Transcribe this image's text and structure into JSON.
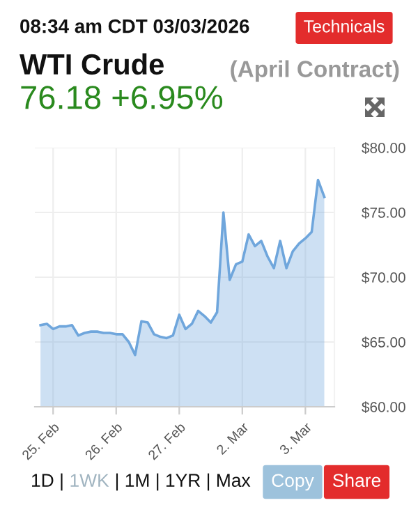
{
  "chart_data": {
    "type": "area",
    "title": "WTI Crude",
    "subtitle": "76.18 +6.95%",
    "annotations": [
      "08:34 am CDT 03/03/2026",
      "(April Contract)",
      "Technicals",
      "1D | ",
      "1WK",
      " | 1M | 1YR | Max",
      "Copy",
      "Share"
    ],
    "categories": [
      null,
      null,
      "25. Feb",
      null,
      null,
      null,
      null,
      null,
      null,
      null,
      null,
      null,
      "26. Feb",
      null,
      null,
      null,
      null,
      null,
      null,
      null,
      null,
      null,
      "27. Feb",
      null,
      null,
      null,
      null,
      null,
      null,
      null,
      null,
      null,
      "2. Mar",
      null,
      null,
      null,
      null,
      null,
      null,
      null,
      null,
      null,
      "3. Mar",
      null,
      null,
      null
    ],
    "series": [
      {
        "color": "#6fa6dc",
        "values": [
          66.3,
          66.4,
          66.0,
          66.2,
          66.2,
          66.3,
          65.5,
          65.7,
          65.8,
          65.8,
          65.7,
          65.7,
          65.6,
          65.6,
          65.0,
          64.0,
          66.6,
          66.5,
          65.6,
          65.4,
          65.3,
          65.5,
          67.1,
          66.0,
          66.4,
          67.4,
          67.0,
          66.5,
          67.3,
          75.0,
          69.8,
          71.0,
          71.2,
          73.3,
          72.4,
          72.8,
          71.6,
          70.7,
          72.8,
          70.7,
          72.0,
          72.6,
          73.0,
          73.5,
          77.5,
          76.2
        ]
      }
    ],
    "ylim": [
      60,
      80
    ],
    "yticks": [
      {
        "value": 60,
        "label": "$60.00"
      },
      {
        "value": 65,
        "label": "$65.00"
      },
      {
        "value": 70,
        "label": "$70.00"
      },
      {
        "value": 75,
        "label": "$75.00"
      },
      {
        "value": 80,
        "label": "$80.00"
      }
    ],
    "grid": true
  }
}
